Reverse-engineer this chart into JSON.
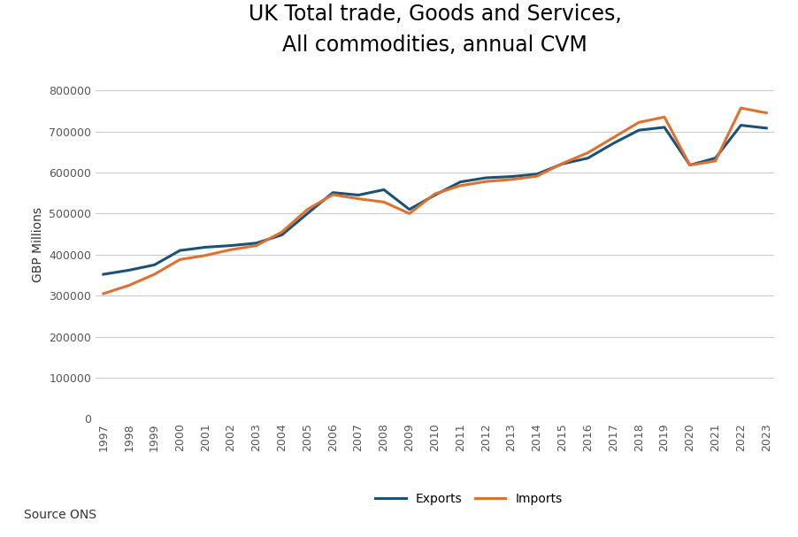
{
  "title_line1": "UK Total trade, Goods and Services,",
  "title_line2": "All commodities, annual CVM",
  "ylabel": "GBP Millions",
  "source": "Source ONS",
  "background_color": "#ffffff",
  "plot_background_color": "#ffffff",
  "exports_color": "#1a5276",
  "imports_color": "#e07030",
  "years": [
    1997,
    1998,
    1999,
    2000,
    2001,
    2002,
    2003,
    2004,
    2005,
    2006,
    2007,
    2008,
    2009,
    2010,
    2011,
    2012,
    2013,
    2014,
    2015,
    2016,
    2017,
    2018,
    2019,
    2020,
    2021,
    2022,
    2023
  ],
  "exports": [
    352000,
    362000,
    375000,
    410000,
    418000,
    422000,
    428000,
    448000,
    500000,
    551000,
    545000,
    558000,
    510000,
    545000,
    577000,
    587000,
    590000,
    596000,
    621000,
    635000,
    671000,
    703000,
    710000,
    618000,
    635000,
    715000,
    708000
  ],
  "imports": [
    305000,
    325000,
    352000,
    388000,
    398000,
    412000,
    422000,
    455000,
    510000,
    546000,
    536000,
    528000,
    500000,
    548000,
    568000,
    578000,
    583000,
    591000,
    622000,
    648000,
    685000,
    722000,
    735000,
    618000,
    628000,
    757000,
    745000
  ],
  "ylim": [
    0,
    850000
  ],
  "yticks": [
    0,
    100000,
    200000,
    300000,
    400000,
    500000,
    600000,
    700000,
    800000
  ],
  "line_width": 2.2,
  "title_fontsize": 17,
  "subtitle_fontsize": 12,
  "axis_label_fontsize": 10,
  "tick_fontsize": 9,
  "legend_fontsize": 10,
  "grid_color": "#cccccc",
  "tick_color": "#555555"
}
